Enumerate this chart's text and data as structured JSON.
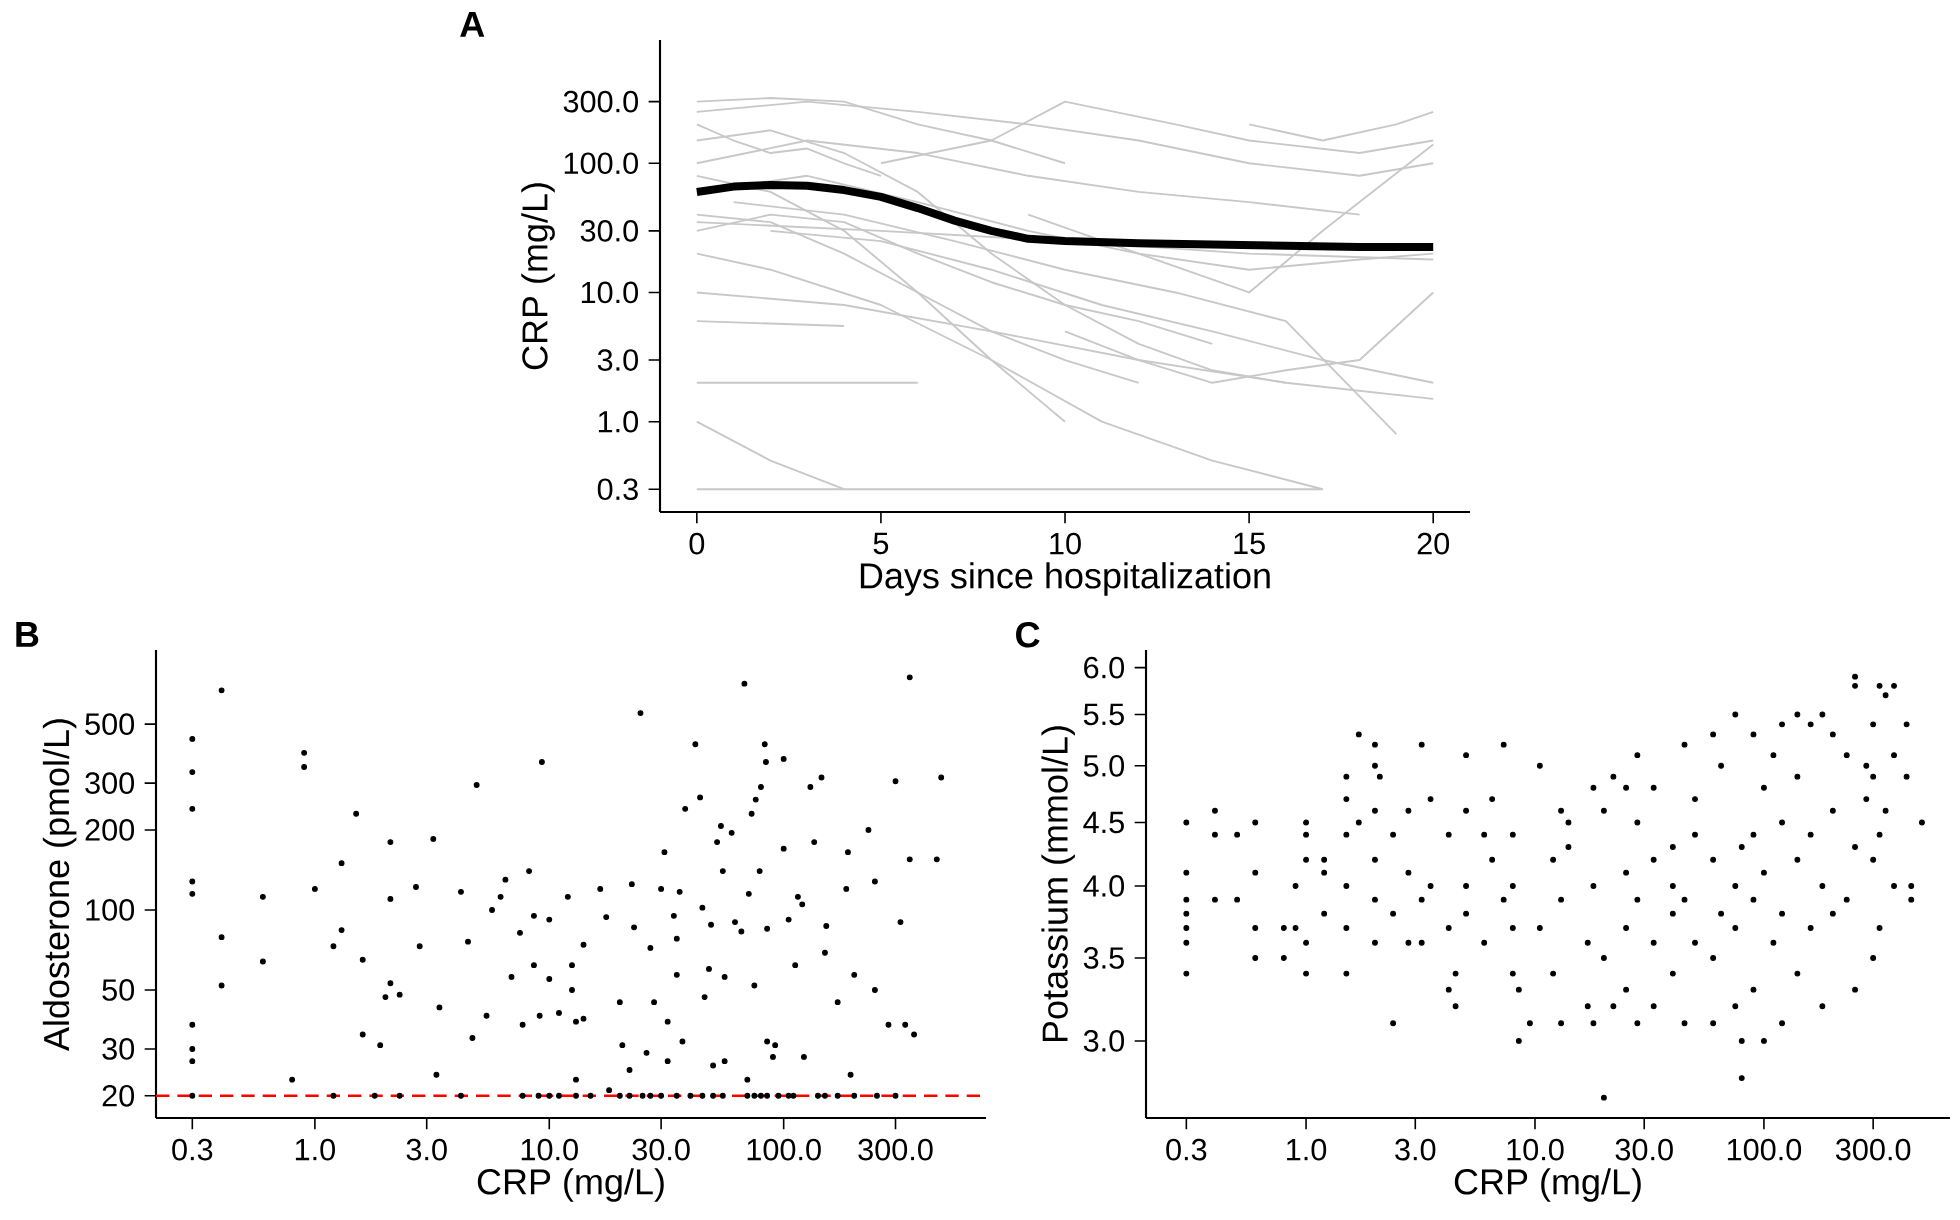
{
  "chart_data": [
    {
      "type": "line",
      "title": "A",
      "xlabel": "Days since hospitalization",
      "ylabel": "CRP (mg/L)",
      "log": "y",
      "marker": "none",
      "xlim": [
        -1,
        21
      ],
      "ylim": [
        0.2,
        900
      ],
      "xticks": [
        0,
        5,
        10,
        15,
        20
      ],
      "yticks": [
        0.3,
        {
          "value": 1,
          "label": "1.0"
        },
        {
          "value": 3,
          "label": "3.0"
        },
        {
          "value": 10,
          "label": "10.0"
        },
        {
          "value": 30,
          "label": "30.0"
        },
        {
          "value": 100,
          "label": "100.0"
        },
        {
          "value": 300,
          "label": "300.0"
        }
      ],
      "series": [
        {
          "color": "#c8c8c8",
          "x": [
            0,
            5,
            10,
            15,
            17
          ],
          "values": [
            0.3,
            0.3,
            0.3,
            0.3,
            0.3
          ]
        },
        {
          "color": "#c8c8c8",
          "x": [
            0,
            2,
            4
          ],
          "values": [
            1,
            0.5,
            0.3
          ]
        },
        {
          "color": "#c8c8c8",
          "x": [
            0,
            3,
            6
          ],
          "values": [
            2,
            2,
            2
          ]
        },
        {
          "color": "#c8c8c8",
          "x": [
            0,
            4
          ],
          "values": [
            6,
            5.5
          ]
        },
        {
          "color": "#c8c8c8",
          "x": [
            0,
            2,
            4,
            6,
            8,
            10
          ],
          "values": [
            300,
            320,
            300,
            200,
            150,
            100
          ]
        },
        {
          "color": "#c8c8c8",
          "x": [
            0,
            3,
            6,
            9,
            12,
            15,
            18
          ],
          "values": [
            100,
            150,
            120,
            80,
            60,
            50,
            40
          ]
        },
        {
          "color": "#c8c8c8",
          "x": [
            0,
            2,
            4,
            6,
            8,
            10,
            12
          ],
          "values": [
            40,
            35,
            20,
            10,
            5,
            3,
            2
          ]
        },
        {
          "color": "#c8c8c8",
          "x": [
            0,
            2,
            4,
            6,
            8,
            10,
            12,
            14,
            16
          ],
          "values": [
            150,
            180,
            120,
            60,
            20,
            8,
            4,
            2.5,
            2
          ]
        },
        {
          "color": "#c8c8c8",
          "x": [
            0,
            3,
            6,
            9,
            12,
            15,
            18,
            20
          ],
          "values": [
            250,
            300,
            250,
            200,
            150,
            100,
            80,
            100
          ]
        },
        {
          "color": "#c8c8c8",
          "x": [
            2,
            5,
            8,
            11,
            14,
            17,
            20
          ],
          "values": [
            30,
            25,
            15,
            8,
            5,
            3,
            2
          ]
        },
        {
          "color": "#c8c8c8",
          "x": [
            0,
            2,
            4,
            6,
            8,
            10
          ],
          "values": [
            80,
            60,
            30,
            10,
            3,
            1
          ]
        },
        {
          "color": "#c8c8c8",
          "x": [
            0,
            4,
            8,
            12,
            16,
            20
          ],
          "values": [
            10,
            8,
            5,
            3,
            2,
            1.5
          ]
        },
        {
          "color": "#c8c8c8",
          "x": [
            5,
            8,
            10,
            13,
            15,
            18,
            20
          ],
          "values": [
            100,
            150,
            300,
            200,
            150,
            120,
            150
          ]
        },
        {
          "color": "#c8c8c8",
          "x": [
            9,
            12,
            15,
            17,
            20
          ],
          "values": [
            40,
            20,
            10,
            30,
            140
          ]
        },
        {
          "color": "#c8c8c8",
          "x": [
            0,
            2,
            5,
            8,
            11,
            14,
            17
          ],
          "values": [
            20,
            15,
            8,
            3,
            1,
            0.5,
            0.3
          ]
        },
        {
          "color": "#c8c8c8",
          "x": [
            1,
            4,
            7,
            10,
            13,
            16,
            19
          ],
          "values": [
            50,
            40,
            25,
            15,
            10,
            6,
            0.8
          ]
        },
        {
          "color": "#c8c8c8",
          "x": [
            0,
            3,
            6,
            9,
            12,
            15,
            18,
            20
          ],
          "values": [
            60,
            80,
            50,
            30,
            20,
            15,
            18,
            20
          ]
        },
        {
          "color": "#c8c8c8",
          "x": [
            0,
            1,
            2,
            3,
            4,
            5
          ],
          "values": [
            200,
            150,
            120,
            130,
            100,
            80
          ]
        },
        {
          "color": "#c8c8c8",
          "x": [
            10,
            12,
            14,
            16,
            18,
            20
          ],
          "values": [
            5,
            3,
            2,
            2.5,
            3,
            10
          ]
        },
        {
          "color": "#c8c8c8",
          "x": [
            15,
            17,
            19,
            20
          ],
          "values": [
            200,
            150,
            200,
            250
          ]
        },
        {
          "color": "#c8c8c8",
          "x": [
            0,
            2,
            4,
            6,
            8,
            10,
            12,
            14
          ],
          "values": [
            30,
            40,
            35,
            20,
            12,
            8,
            6,
            4
          ]
        },
        {
          "color": "#c8c8c8",
          "x": [
            0,
            5,
            10,
            15,
            20
          ],
          "values": [
            35,
            30,
            25,
            20,
            18
          ]
        },
        {
          "color": "#000000",
          "x": [
            0,
            1,
            2,
            3,
            4,
            5,
            6,
            7,
            8,
            9,
            10,
            12,
            14,
            16,
            18,
            20
          ],
          "values": [
            60,
            66,
            68,
            67,
            62,
            55,
            45,
            36,
            30,
            26,
            25,
            24,
            23.5,
            23,
            22.5,
            22.5
          ]
        }
      ]
    },
    {
      "type": "scatter",
      "title": "B",
      "xlabel": "CRP (mg/L)",
      "ylabel": "Aldosterone (pmol/L)",
      "log": "xy",
      "marker": "circle",
      "color": "#000000",
      "xlim": [
        0.21,
        730
      ],
      "ylim": [
        16.5,
        950
      ],
      "xticks": [
        0.3,
        {
          "value": 1,
          "label": "1.0"
        },
        {
          "value": 3,
          "label": "3.0"
        },
        {
          "value": 10,
          "label": "10.0"
        },
        {
          "value": 30,
          "label": "30.0"
        },
        {
          "value": 100,
          "label": "100.0"
        },
        {
          "value": 300,
          "label": "300.0"
        }
      ],
      "yticks": [
        20,
        30,
        50,
        100,
        200,
        300,
        500
      ],
      "ref_lines": [
        {
          "axis": "y",
          "value": 20,
          "color": "#ff0000",
          "line_style": "dashed"
        }
      ],
      "x": [
        0.3,
        0.3,
        0.3,
        0.3,
        0.3,
        0.3,
        0.3,
        0.3,
        0.3,
        0.4,
        0.4,
        0.4,
        0.6,
        0.6,
        0.8,
        0.9,
        0.9,
        1.0,
        1.2,
        1.2,
        1.3,
        1.3,
        1.5,
        1.6,
        1.6,
        1.8,
        1.9,
        2.1,
        2.1,
        2.1,
        2.0,
        2.3,
        2.3,
        2.7,
        2.8,
        3.2,
        3.4,
        3.3,
        4.2,
        4.2,
        4.5,
        4.7,
        4.9,
        5.4,
        5.7,
        6.2,
        6.5,
        6.9,
        7.5,
        7.7,
        8.2,
        8.6,
        8.6,
        9.3,
        9.1,
        10,
        10,
        10,
        11,
        12,
        12.5,
        12.5,
        13,
        13,
        14,
        14,
        16.5,
        17.5,
        18,
        20,
        20.5,
        22,
        22.5,
        23,
        24.5,
        26,
        27,
        28,
        30,
        31,
        32,
        32,
        34,
        35,
        35,
        36,
        38,
        37,
        42,
        44,
        45,
        46,
        48,
        49,
        50,
        52,
        54,
        55,
        56,
        56,
        60,
        62,
        66,
        68,
        70,
        71,
        73,
        75,
        76,
        79,
        80,
        83,
        84,
        85,
        85,
        90,
        92,
        100,
        100,
        105,
        112,
        115,
        120,
        122,
        130,
        135,
        145,
        150,
        152,
        170,
        185,
        188,
        193,
        200,
        230,
        245,
        245,
        280,
        300,
        315,
        330,
        345,
        345,
        360,
        450,
        470,
        7.7,
        9,
        11,
        13,
        15,
        20,
        22,
        25,
        27,
        30,
        35,
        40,
        45,
        50,
        55,
        70,
        75,
        80,
        85,
        95,
        105,
        110,
        140,
        150,
        170,
        200,
        250,
        300
      ],
      "values": [
        440,
        330,
        240,
        128,
        115,
        37,
        30,
        27,
        20,
        670,
        79,
        52,
        112,
        64,
        23,
        390,
        345,
        120,
        20,
        73,
        84,
        150,
        230,
        65,
        34,
        20,
        31,
        180,
        110,
        53,
        47,
        20,
        48,
        122,
        73,
        185,
        43,
        24,
        20,
        117,
        76,
        33,
        295,
        40,
        100,
        112,
        130,
        56,
        82,
        37,
        140,
        62,
        95,
        360,
        40,
        55,
        92,
        20,
        41,
        112,
        62,
        50,
        23,
        38,
        39,
        74,
        120,
        94,
        21,
        45,
        31,
        25,
        125,
        86,
        550,
        29,
        72,
        45,
        120,
        165,
        38,
        27,
        95,
        78,
        57,
        117,
        240,
        32,
        420,
        265,
        102,
        47,
        60,
        88,
        26,
        180,
        207,
        140,
        27,
        56,
        195,
        90,
        83,
        710,
        23,
        115,
        230,
        52,
        260,
        140,
        290,
        420,
        360,
        85,
        32,
        28,
        31,
        370,
        170,
        92,
        62,
        112,
        105,
        28,
        290,
        180,
        315,
        69,
        87,
        45,
        120,
        165,
        24,
        57,
        200,
        128,
        50,
        37,
        305,
        90,
        37,
        155,
        750,
        34,
        155,
        315,
        20,
        20,
        20,
        20,
        20,
        20,
        20,
        20,
        20,
        20,
        20,
        20,
        20,
        20,
        20,
        20,
        20,
        20,
        20,
        20,
        20,
        20,
        20,
        20,
        20,
        20,
        20,
        20
      ]
    },
    {
      "type": "scatter",
      "title": "C",
      "xlabel": "CRP (mg/L)",
      "ylabel": "Potassium (mmol/L)",
      "log": "xy",
      "marker": "circle",
      "color": "#000000",
      "xlim": [
        0.2,
        650
      ],
      "ylim": [
        2.6,
        6.2
      ],
      "xticks": [
        0.3,
        {
          "value": 1,
          "label": "1.0"
        },
        {
          "value": 3,
          "label": "3.0"
        },
        {
          "value": 10,
          "label": "10.0"
        },
        {
          "value": 30,
          "label": "30.0"
        },
        {
          "value": 100,
          "label": "100.0"
        },
        {
          "value": 300,
          "label": "300.0"
        }
      ],
      "yticks": [
        {
          "value": 3,
          "label": "3.0"
        },
        3.5,
        {
          "value": 4,
          "label": "4.0"
        },
        4.5,
        {
          "value": 5,
          "label": "5.0"
        },
        5.5,
        {
          "value": 6,
          "label": "6.0"
        }
      ],
      "x": [
        0.3,
        0.3,
        0.3,
        0.3,
        0.3,
        0.3,
        0.3,
        0.4,
        0.4,
        0.4,
        0.5,
        0.5,
        0.6,
        0.6,
        0.6,
        0.6,
        0.8,
        0.8,
        0.9,
        0.9,
        1.0,
        1.0,
        1.0,
        1.0,
        1.0,
        1.2,
        1.2,
        1.2,
        1.5,
        1.5,
        1.5,
        1.5,
        1.5,
        1.5,
        1.7,
        1.7,
        2.0,
        2.0,
        2.0,
        2.0,
        2.0,
        2.0,
        2.1,
        2.4,
        2.4,
        2.4,
        2.8,
        2.8,
        2.8,
        3.2,
        3.2,
        3.2,
        3.5,
        3.5,
        4.2,
        4.2,
        4.2,
        4.5,
        4.5,
        5,
        5,
        5,
        5,
        6,
        6,
        6.5,
        6.5,
        7.3,
        7.3,
        8,
        8,
        8,
        8,
        8.5,
        8.5,
        9.5,
        10.5,
        10.5,
        12,
        12,
        13,
        13,
        13,
        14,
        14,
        17,
        17,
        18,
        18,
        18,
        20,
        20,
        20,
        22,
        22,
        25,
        25,
        25,
        25,
        28,
        28,
        28,
        28,
        33,
        33,
        33,
        33,
        40,
        40,
        40,
        40,
        45,
        45,
        45,
        50,
        50,
        50,
        60,
        60,
        60,
        60,
        65,
        65,
        75,
        75,
        75,
        75,
        80,
        80,
        80,
        90,
        90,
        90,
        90,
        100,
        100,
        100,
        110,
        110,
        120,
        120,
        120,
        120,
        140,
        140,
        140,
        140,
        160,
        160,
        160,
        180,
        180,
        180,
        200,
        200,
        200,
        230,
        230,
        250,
        250,
        250,
        250,
        280,
        280,
        300,
        300,
        300,
        300,
        320,
        320,
        320,
        340,
        340,
        370,
        370,
        370,
        420,
        420,
        440,
        440,
        490
      ],
      "values": [
        4.5,
        4.1,
        3.9,
        3.8,
        3.7,
        3.6,
        3.4,
        4.6,
        4.4,
        3.9,
        4.4,
        3.9,
        4.5,
        4.1,
        3.7,
        3.5,
        3.7,
        3.5,
        4.0,
        3.7,
        4.5,
        4.4,
        4.2,
        3.6,
        3.4,
        4.2,
        4.1,
        3.8,
        4.9,
        4.7,
        4.4,
        4.0,
        3.7,
        3.4,
        5.3,
        4.5,
        5.2,
        5.0,
        4.6,
        4.2,
        3.9,
        3.6,
        4.9,
        3.1,
        4.4,
        3.8,
        4.6,
        4.1,
        3.6,
        5.2,
        3.9,
        3.6,
        4.7,
        4.0,
        4.4,
        3.7,
        3.3,
        3.2,
        3.4,
        5.1,
        4.6,
        4.0,
        3.8,
        4.4,
        3.6,
        4.7,
        4.2,
        5.2,
        3.9,
        4.4,
        4.0,
        3.7,
        3.4,
        3.0,
        3.3,
        3.1,
        5.0,
        3.7,
        4.2,
        3.4,
        4.6,
        3.9,
        3.1,
        4.5,
        4.3,
        3.2,
        3.6,
        4.8,
        4.0,
        3.1,
        2.7,
        4.6,
        3.5,
        4.9,
        3.2,
        4.8,
        4.1,
        3.7,
        3.3,
        5.1,
        4.5,
        3.9,
        3.1,
        4.8,
        4.2,
        3.6,
        3.2,
        4.3,
        4.0,
        3.8,
        3.4,
        5.2,
        3.9,
        3.1,
        4.7,
        4.4,
        3.6,
        5.3,
        4.2,
        3.5,
        3.1,
        5.0,
        3.8,
        5.5,
        4.0,
        3.7,
        3.2,
        2.8,
        3.0,
        4.3,
        5.3,
        4.4,
        3.9,
        3.3,
        3.0,
        4.8,
        4.1,
        5.1,
        3.6,
        5.4,
        4.5,
        3.8,
        3.1,
        5.5,
        4.9,
        4.2,
        3.4,
        5.4,
        4.4,
        3.7,
        5.5,
        3.2,
        4.0,
        5.3,
        4.6,
        3.8,
        5.1,
        3.9,
        5.9,
        5.8,
        4.3,
        3.3,
        5.0,
        4.7,
        5.4,
        4.9,
        3.5,
        4.2,
        5.8,
        4.4,
        3.7,
        5.7,
        4.6,
        5.8,
        5.1,
        4.0,
        5.4,
        4.9,
        3.9,
        4.0,
        4.5
      ]
    }
  ]
}
